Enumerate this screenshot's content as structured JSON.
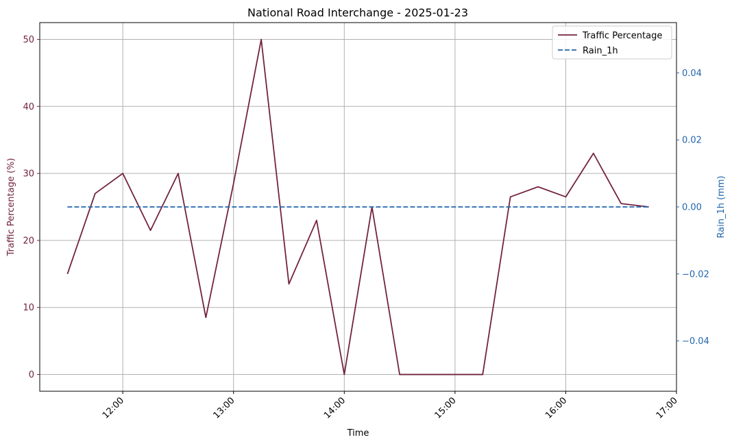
{
  "chart_data": {
    "type": "line",
    "title": "National Road Interchange - 2025-01-23",
    "xlabel": "Time",
    "ylabel": "Traffic Percentage (%)",
    "y2label": "Rain_1h (mm)",
    "x_ticks": [
      "12:00",
      "13:00",
      "14:00",
      "15:00",
      "16:00",
      "17:00"
    ],
    "x": [
      "11:30",
      "11:45",
      "12:00",
      "12:15",
      "12:30",
      "12:45",
      "13:00",
      "13:15",
      "13:30",
      "13:45",
      "14:00",
      "14:15",
      "14:30",
      "14:45",
      "15:00",
      "15:15",
      "15:30",
      "15:45",
      "16:00",
      "16:15",
      "16:30",
      "16:45"
    ],
    "xlim": [
      "11:15",
      "17:00"
    ],
    "ylim": [
      -2.5,
      52.5
    ],
    "y_ticks": [
      0,
      10,
      20,
      30,
      40,
      50
    ],
    "y2lim": [
      -0.055,
      0.055
    ],
    "y2_ticks": [
      -0.04,
      -0.02,
      0.0,
      0.02,
      0.04
    ],
    "y2_tick_labels": [
      "−0.04",
      "−0.02",
      "0.00",
      "0.02",
      "0.04"
    ],
    "grid": true,
    "legend_position": "top-right",
    "series": [
      {
        "name": "Traffic Percentage",
        "axis": "left",
        "color": "#722240",
        "style": "solid",
        "values": [
          15,
          27,
          30,
          21.5,
          30,
          8.5,
          28.5,
          50,
          13.5,
          23,
          0,
          25,
          0,
          0,
          0,
          0,
          26.5,
          28,
          26.5,
          33,
          25.5,
          25
        ]
      },
      {
        "name": "Rain_1h",
        "axis": "right",
        "color": "#2166ac",
        "style": "dashed",
        "values": [
          0,
          0,
          0,
          0,
          0,
          0,
          0,
          0,
          0,
          0,
          0,
          0,
          0,
          0,
          0,
          0,
          0,
          0,
          0,
          0,
          0,
          0
        ]
      }
    ],
    "colors": {
      "left_axis": "#722240",
      "right_axis": "#2166ac"
    }
  }
}
